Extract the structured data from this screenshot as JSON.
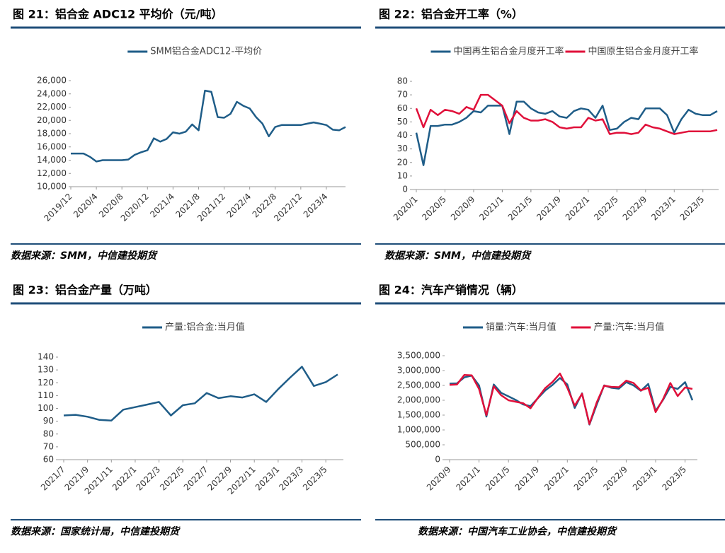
{
  "chart_data": [
    {
      "type": "line",
      "title": "图 21：铝合金 ADC12 平均价（元/吨）",
      "source": "数据来源：SMM，中信建投期货",
      "categories": [
        "2019/12",
        null,
        null,
        null,
        "2020/4",
        null,
        null,
        null,
        "2020/8",
        null,
        null,
        null,
        "2020/12",
        null,
        null,
        null,
        "2021/4",
        null,
        null,
        null,
        "2021/8",
        null,
        null,
        null,
        "2021/12",
        null,
        null,
        null,
        "2022/4",
        null,
        null,
        null,
        "2022/8",
        null,
        null,
        null,
        "2022/12",
        null,
        null,
        null,
        "2023/4",
        null,
        null,
        null
      ],
      "series": [
        {
          "name": "SMM铝合金ADC12-平均价",
          "color": "#1f5d88",
          "values": [
            15000,
            15000,
            15000,
            14500,
            13800,
            14000,
            14000,
            14000,
            14000,
            14100,
            14800,
            15200,
            15500,
            17300,
            16800,
            17200,
            18200,
            18000,
            18300,
            19400,
            18500,
            24500,
            24300,
            20500,
            20400,
            21000,
            22800,
            22200,
            21800,
            20500,
            19500,
            17600,
            19000,
            19300,
            19300,
            19300,
            19300,
            19500,
            19700,
            19500,
            19300,
            18600,
            18500,
            19000
          ]
        }
      ],
      "ylim": [
        10000,
        26000
      ],
      "yticks": [
        {
          "value": 10000,
          "label": "10,000"
        },
        {
          "value": 12000,
          "label": "12,000"
        },
        {
          "value": 14000,
          "label": "14,000"
        },
        {
          "value": 16000,
          "label": "16,000"
        },
        {
          "value": 18000,
          "label": "18,000"
        },
        {
          "value": 20000,
          "label": "20,000"
        },
        {
          "value": 22000,
          "label": "22,000"
        },
        {
          "value": 24000,
          "label": "24,000"
        },
        {
          "value": 26000,
          "label": "26,000"
        }
      ]
    },
    {
      "type": "line",
      "title": "图 22：铝合金开工率（%）",
      "source": "数据来源：SMM，中信建投期货",
      "categories": [
        "2020/1",
        null,
        null,
        null,
        "2020/5",
        null,
        null,
        null,
        "2020/9",
        null,
        null,
        null,
        "2021/1",
        null,
        null,
        null,
        "2021/5",
        null,
        null,
        null,
        "2021/9",
        null,
        null,
        null,
        "2022/1",
        null,
        null,
        null,
        "2022/5",
        null,
        null,
        null,
        "2022/9",
        null,
        null,
        null,
        "2023/1",
        null,
        null,
        null,
        "2023/5",
        null,
        null
      ],
      "series": [
        {
          "name": "中国再生铝合金月度开工率",
          "color": "#1f5d88",
          "values": [
            42,
            18,
            47,
            47,
            48,
            48,
            50,
            53,
            58,
            57,
            62,
            62,
            62,
            41,
            65,
            65,
            60,
            57,
            56,
            58,
            54,
            53,
            58,
            60,
            59,
            53,
            62,
            44,
            45,
            50,
            53,
            52,
            60,
            60,
            60,
            55,
            42,
            52,
            59,
            56,
            55,
            55,
            58
          ]
        },
        {
          "name": "中国原生铝合金月度开工率",
          "color": "#e0103a",
          "values": [
            60,
            46,
            59,
            55,
            59,
            58,
            56,
            61,
            59,
            70,
            70,
            66,
            62,
            49,
            58,
            53,
            51,
            51,
            52,
            50,
            46,
            45,
            46,
            46,
            53,
            51,
            52,
            41,
            42,
            42,
            41,
            42,
            48,
            46,
            45,
            43,
            41,
            42,
            43,
            43,
            43,
            43,
            44
          ]
        }
      ],
      "ylim": [
        0,
        80
      ],
      "yticks": [
        0,
        10,
        20,
        30,
        40,
        50,
        60,
        70,
        80
      ]
    },
    {
      "type": "line",
      "title": "图 23：铝合金产量（万吨）",
      "source": "数据来源：国家统计局，中信建投期货",
      "categories": [
        "2021/7",
        null,
        "2021/9",
        null,
        "2021/11",
        null,
        "2022/1",
        null,
        "2022/3",
        null,
        "2022/5",
        null,
        "2022/7",
        null,
        "2022/9",
        null,
        "2022/11",
        null,
        "2023/1",
        null,
        "2023/3",
        null,
        "2023/5",
        null
      ],
      "series": [
        {
          "name": "产量:铝合金:当月值",
          "color": "#1f5d88",
          "values": [
            94.5,
            95,
            93.5,
            91,
            90.5,
            99,
            101,
            103,
            105,
            94.5,
            102.5,
            104,
            112,
            108,
            109.5,
            108.5,
            111,
            105,
            115,
            124,
            132.5,
            117.5,
            120.5,
            126.5
          ]
        }
      ],
      "ylim": [
        60,
        140
      ],
      "yticks": [
        60,
        70,
        80,
        90,
        100,
        110,
        120,
        130,
        140
      ]
    },
    {
      "type": "line",
      "title": "图 24：汽车产销情况（辆）",
      "source": "数据来源：中国汽车工业协会，中信建投期货",
      "categories": [
        "2020/9",
        null,
        null,
        null,
        "2021/1",
        null,
        null,
        null,
        "2021/5",
        null,
        null,
        null,
        "2021/9",
        null,
        null,
        null,
        "2022/1",
        null,
        null,
        null,
        "2022/5",
        null,
        null,
        null,
        "2022/9",
        null,
        null,
        null,
        "2023/1",
        null,
        null,
        null,
        "2023/5",
        null
      ],
      "series": [
        {
          "name": "销量:汽车:当月值",
          "color": "#1f5d88",
          "values": [
            2560000,
            2570000,
            2770000,
            2830000,
            2500000,
            1450000,
            2530000,
            2250000,
            2130000,
            2010000,
            1860000,
            1800000,
            2070000,
            2330000,
            2520000,
            2750000,
            2530000,
            1740000,
            2230000,
            1180000,
            1860000,
            2500000,
            2420000,
            2390000,
            2610000,
            2500000,
            2320000,
            2550000,
            1640000,
            2010000,
            2450000,
            2380000,
            2610000,
            2000000
          ]
        },
        {
          "name": "产量:汽车:当月值",
          "color": "#e0103a",
          "values": [
            2520000,
            2530000,
            2850000,
            2840000,
            2380000,
            1500000,
            2470000,
            2170000,
            2000000,
            1950000,
            1900000,
            1730000,
            2080000,
            2410000,
            2620000,
            2900000,
            2420000,
            1820000,
            2220000,
            1200000,
            1930000,
            2490000,
            2450000,
            2440000,
            2660000,
            2580000,
            2330000,
            2420000,
            1600000,
            2030000,
            2580000,
            2140000,
            2430000,
            2380000
          ]
        }
      ],
      "ylim": [
        0,
        3500000
      ],
      "yticks": [
        0,
        {
          "value": 500000,
          "label": "500,000"
        },
        {
          "value": 1000000,
          "label": "1,000,000"
        },
        {
          "value": 1500000,
          "label": "1,500,000"
        },
        {
          "value": 2000000,
          "label": "2,000,000"
        },
        {
          "value": 2500000,
          "label": "2,500,000"
        },
        {
          "value": 3000000,
          "label": "3,000,000"
        },
        {
          "value": 3500000,
          "label": "3,500,000"
        }
      ]
    }
  ]
}
